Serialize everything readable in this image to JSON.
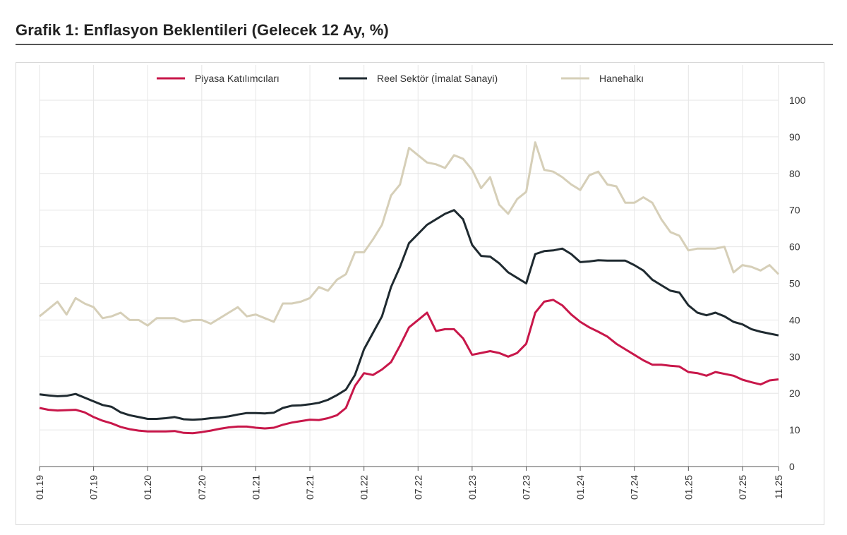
{
  "title": "Grafik 1: Enflasyon Beklentileri (Gelecek 12 Ay, %)",
  "chart_data": {
    "type": "line",
    "title": "Grafik 1: Enflasyon Beklentileri (Gelecek 12 Ay, %)",
    "x_start": "01.19",
    "x_end": "11.25",
    "x_frequency": "monthly",
    "x_tick_labels": [
      "01.19",
      "07.19",
      "01.20",
      "07.20",
      "01.21",
      "07.21",
      "01.22",
      "07.22",
      "01.23",
      "07.23",
      "01.24",
      "07.24",
      "01.25",
      "07.25",
      "11.25"
    ],
    "y_tick_labels": [
      "0",
      "10",
      "20",
      "30",
      "40",
      "50",
      "60",
      "70",
      "80",
      "90",
      "100"
    ],
    "ylim": [
      0,
      100
    ],
    "y_axis_side": "right",
    "grid": true,
    "legend_position": "top",
    "series": [
      {
        "name": "Piyasa Katılımcıları",
        "color": "#c8174a",
        "values": [
          16,
          15.5,
          15.3,
          15.4,
          15.5,
          14.8,
          13.5,
          12.5,
          11.8,
          10.8,
          10.2,
          9.8,
          9.6,
          9.6,
          9.6,
          9.7,
          9.2,
          9.1,
          9.4,
          9.8,
          10.3,
          10.7,
          10.9,
          10.9,
          10.6,
          10.4,
          10.6,
          11.4,
          12,
          12.4,
          12.8,
          12.7,
          13.2,
          14,
          16,
          22,
          25.5,
          25,
          26.5,
          28.5,
          33,
          38,
          40,
          42,
          37,
          37.5,
          37.5,
          35,
          30.5,
          31,
          31.5,
          31,
          30,
          31,
          33.5,
          42,
          45,
          45.5,
          44,
          41.5,
          39.5,
          38,
          36.8,
          35.5,
          33.5,
          32,
          30.5,
          29,
          27.8,
          27.8,
          27.5,
          27.3,
          25.8,
          25.5,
          24.8,
          25.8,
          25.3,
          24.8,
          23.7,
          23,
          22.4,
          23.5,
          23.8
        ]
      },
      {
        "name": "Reel Sektör (İmalat Sanayi)",
        "color": "#1f2a30",
        "values": [
          19.7,
          19.4,
          19.2,
          19.3,
          19.8,
          18.8,
          17.8,
          16.8,
          16.3,
          14.8,
          14,
          13.5,
          13,
          13,
          13.2,
          13.5,
          12.9,
          12.8,
          12.9,
          13.2,
          13.4,
          13.7,
          14.2,
          14.6,
          14.6,
          14.5,
          14.7,
          16,
          16.6,
          16.7,
          17,
          17.4,
          18.2,
          19.5,
          21,
          25,
          32,
          36.5,
          41,
          49,
          54.5,
          61,
          63.5,
          66,
          67.5,
          69,
          70,
          67.5,
          60.5,
          57.5,
          57.3,
          55.5,
          53,
          51.5,
          50,
          58,
          58.8,
          59,
          59.5,
          58,
          55.8,
          56,
          56.3,
          56.2,
          56.2,
          56.2,
          55,
          53.5,
          51,
          49.5,
          48,
          47.5,
          44,
          42,
          41.3,
          42,
          41,
          39.5,
          38.8,
          37.5,
          36.8,
          36.3,
          35.8
        ]
      },
      {
        "name": "Hanehalkı",
        "color": "#d6cfb8",
        "values": [
          41,
          43,
          45,
          41.5,
          46,
          44.5,
          43.5,
          40.5,
          41,
          42,
          40,
          40,
          38.5,
          40.5,
          40.5,
          40.5,
          39.5,
          40,
          40,
          39,
          40.5,
          42,
          43.5,
          41,
          41.5,
          40.5,
          39.5,
          44.5,
          44.5,
          45,
          46,
          49,
          48,
          51,
          52.5,
          58.5,
          58.5,
          62,
          66,
          74,
          77,
          87,
          85,
          83,
          82.5,
          81.5,
          85,
          84,
          81,
          76,
          79,
          71.5,
          69,
          73,
          75,
          88.5,
          81,
          80.5,
          79,
          77,
          75.5,
          79.5,
          80.5,
          77,
          76.5,
          72,
          72,
          73.5,
          72,
          67.5,
          64,
          63,
          59,
          59.5,
          59.5,
          59.5,
          60,
          53,
          55,
          54.5,
          53.5,
          55,
          52.5
        ]
      }
    ]
  }
}
